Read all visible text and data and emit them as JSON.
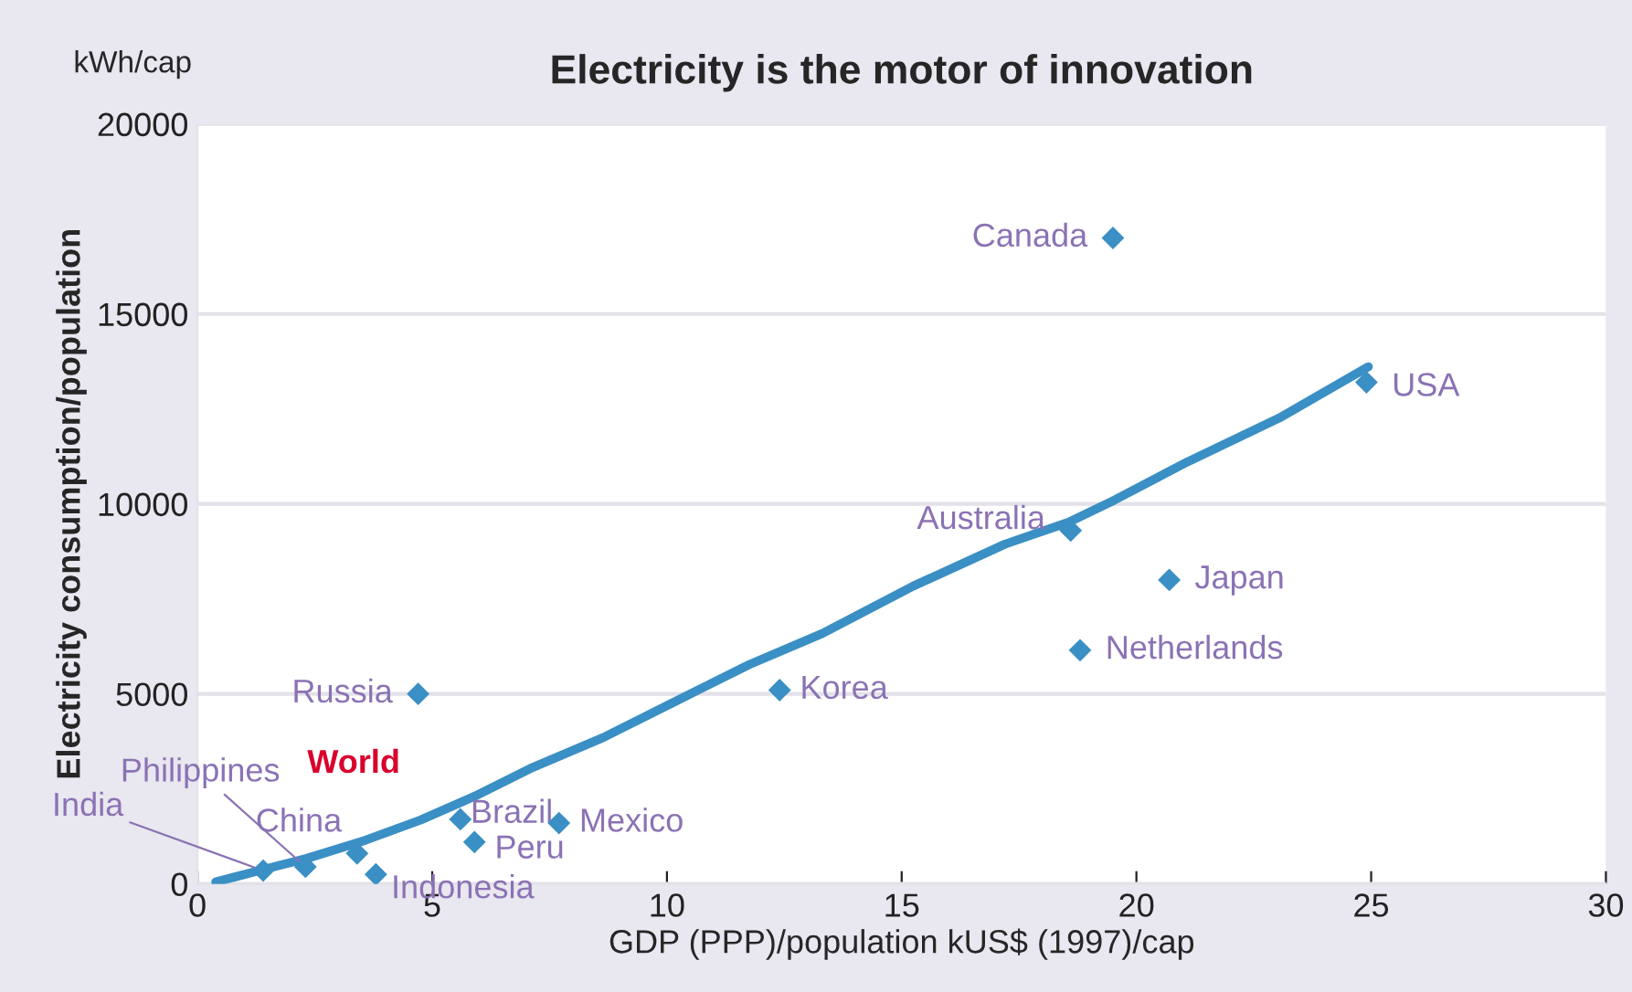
{
  "chart_data": {
    "type": "scatter",
    "title": "Electricity is the motor of innovation",
    "xlabel": "GDP (PPP)/population kUS$ (1997)/cap",
    "ylabel": "Electricity consumption/population",
    "annotations": [
      "kWh/cap"
    ],
    "xlim": [
      0,
      30
    ],
    "ylim": [
      0,
      20000
    ],
    "xticks": [
      0,
      5,
      10,
      15,
      20,
      25,
      30
    ],
    "yticks": [
      0,
      5000,
      10000,
      15000,
      20000
    ],
    "grid": "y",
    "marker": "diamond",
    "series": [
      {
        "name": "World",
        "type": "line",
        "color": "#3a8fc4",
        "marker": "none",
        "x": [
          0.39,
          1.44,
          2.33,
          3.58,
          4.75,
          5.91,
          7.08,
          8.64,
          10.19,
          11.75,
          13.31,
          15.25,
          17.2,
          18.56,
          19.53,
          21.09,
          23.04,
          24.94
        ],
        "values": [
          50,
          390,
          670,
          1150,
          1680,
          2310,
          3030,
          3850,
          4810,
          5770,
          6590,
          7840,
          8940,
          9520,
          10100,
          11110,
          12260,
          13610
        ]
      },
      {
        "name": "Canada",
        "color": "#3a8fc4",
        "x": [
          19.5
        ],
        "values": [
          17000
        ]
      },
      {
        "name": "USA",
        "color": "#3a8fc4",
        "x": [
          24.9
        ],
        "values": [
          13200
        ]
      },
      {
        "name": "Australia",
        "color": "#3a8fc4",
        "x": [
          18.6
        ],
        "values": [
          9300
        ]
      },
      {
        "name": "Japan",
        "color": "#3a8fc4",
        "x": [
          20.7
        ],
        "values": [
          8000
        ]
      },
      {
        "name": "Netherlands",
        "color": "#3a8fc4",
        "x": [
          18.8
        ],
        "values": [
          6150
        ]
      },
      {
        "name": "Korea",
        "color": "#3a8fc4",
        "x": [
          12.4
        ],
        "values": [
          5100
        ]
      },
      {
        "name": "Russia",
        "color": "#3a8fc4",
        "x": [
          4.7
        ],
        "values": [
          5000
        ]
      },
      {
        "name": "Brazil",
        "color": "#3a8fc4",
        "x": [
          5.6
        ],
        "values": [
          1700
        ]
      },
      {
        "name": "Mexico",
        "color": "#3a8fc4",
        "x": [
          7.7
        ],
        "values": [
          1600
        ]
      },
      {
        "name": "Peru",
        "color": "#3a8fc4",
        "x": [
          5.9
        ],
        "values": [
          1100
        ]
      },
      {
        "name": "China",
        "color": "#3a8fc4",
        "x": [
          3.4
        ],
        "values": [
          800
        ]
      },
      {
        "name": "Indonesia",
        "color": "#3a8fc4",
        "x": [
          3.8
        ],
        "values": [
          250
        ]
      },
      {
        "name": "Philippines",
        "color": "#3a8fc4",
        "x": [
          2.3
        ],
        "values": [
          450
        ]
      },
      {
        "name": "India",
        "color": "#3a8fc4",
        "x": [
          1.4
        ],
        "values": [
          350
        ]
      }
    ]
  }
}
